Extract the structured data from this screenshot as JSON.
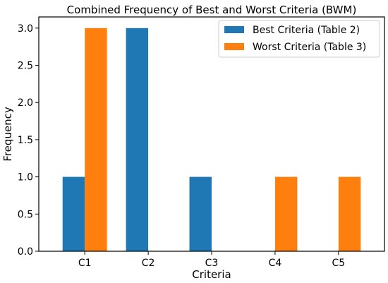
{
  "chart_data": {
    "type": "bar",
    "title": "Combined Frequency of Best and Worst Criteria (BWM)",
    "xlabel": "Criteria",
    "ylabel": "Frequency",
    "categories": [
      "C1",
      "C2",
      "C3",
      "C4",
      "C5"
    ],
    "series": [
      {
        "name": "Best Criteria (Table 2)",
        "values": [
          1,
          3,
          1,
          0,
          0
        ],
        "color": "#1f77b4"
      },
      {
        "name": "Worst Criteria (Table 3)",
        "values": [
          3,
          0,
          0,
          1,
          1
        ],
        "color": "#ff7f0e"
      }
    ],
    "ylim": [
      0,
      3.15
    ],
    "yticks": [
      0.0,
      0.5,
      1.0,
      1.5,
      2.0,
      2.5,
      3.0
    ],
    "ytick_labels": [
      "0.0",
      "0.5",
      "1.0",
      "1.5",
      "2.0",
      "2.5",
      "3.0"
    ],
    "grid": false,
    "legend_position": "top-right"
  }
}
